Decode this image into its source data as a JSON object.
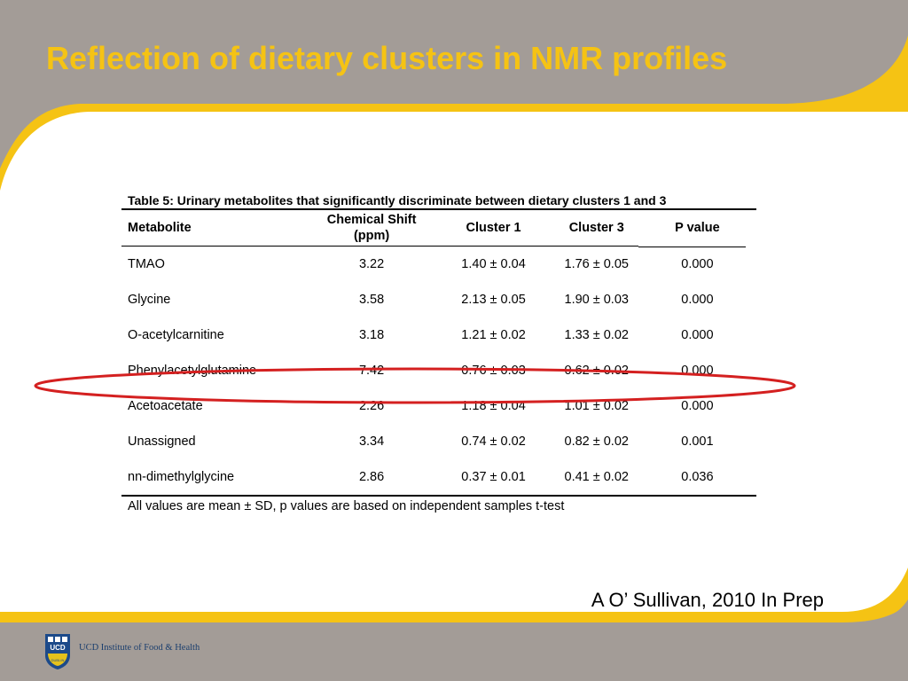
{
  "slide": {
    "title": "Reflection of dietary clusters in NMR profiles",
    "citation": "A O’ Sullivan, 2010 In Prep",
    "colors": {
      "title": "#f5c314",
      "background_gray": "#a39c97",
      "accent_yellow": "#f5c314",
      "highlight_ring": "#d42020",
      "content_bg": "#ffffff"
    }
  },
  "table": {
    "caption": "Table 5: Urinary metabolites that significantly discriminate between  dietary clusters 1 and 3",
    "headers": {
      "metabolite": "Metabolite",
      "shift_line1": "Chemical Shift",
      "shift_line2": "(ppm)",
      "cluster1": "Cluster 1",
      "cluster3": "Cluster 3",
      "pvalue": "P value"
    },
    "rows": [
      {
        "metabolite": "TMAO",
        "shift": "3.22",
        "cluster1": "1.40 ± 0.04",
        "cluster3": "1.76 ± 0.05",
        "p": "0.000"
      },
      {
        "metabolite": "Glycine",
        "shift": "3.58",
        "cluster1": "2.13 ± 0.05",
        "cluster3": "1.90 ± 0.03",
        "p": "0.000"
      },
      {
        "metabolite": "O-acetylcarnitine",
        "shift": "3.18",
        "cluster1": "1.21 ± 0.02",
        "cluster3": "1.33 ± 0.02",
        "p": "0.000"
      },
      {
        "metabolite": "Phenylacetylglutamine",
        "shift": "7.42",
        "cluster1": "0.76 ± 0.03",
        "cluster3": "0.62 ± 0.02",
        "p": "0.000"
      },
      {
        "metabolite": "Acetoacetate",
        "shift": "2.26",
        "cluster1": "1.18 ± 0.04",
        "cluster3": "1.01 ± 0.02",
        "p": "0.000"
      },
      {
        "metabolite": "Unassigned",
        "shift": "3.34",
        "cluster1": "0.74 ± 0.02",
        "cluster3": "0.82 ± 0.02",
        "p": "0.001"
      },
      {
        "metabolite": "nn-dimethylglycine",
        "shift": "2.86",
        "cluster1": "0.37 ± 0.01",
        "cluster3": "0.41 ± 0.02",
        "p": "0.036"
      }
    ],
    "highlighted_row": "Phenylacetylglutamine",
    "footnote": "All values are mean ± SD, p values are based on independent samples t-test"
  },
  "logo": {
    "crest_text": "UCD",
    "crest_subtext": "DUBLIN",
    "institute_name": "UCD Institute of Food & Health",
    "icon": "ucd-crest-icon"
  }
}
